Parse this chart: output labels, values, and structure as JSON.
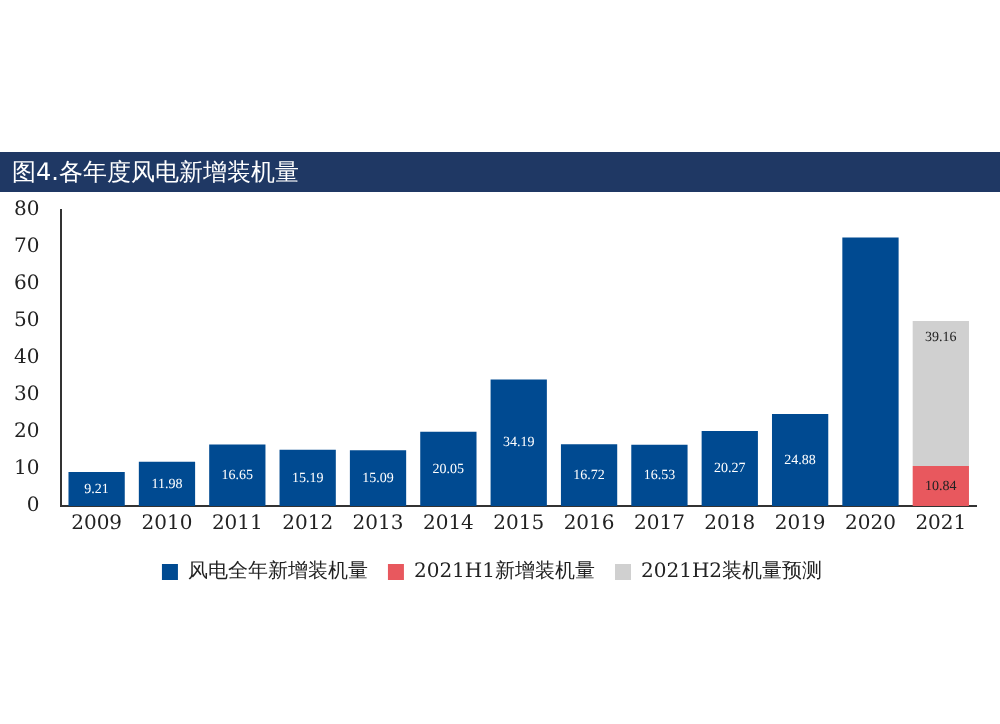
{
  "chart_data": {
    "type": "bar",
    "title": "图4.各年度风电新增装机量",
    "stacked": true,
    "categories": [
      "2009",
      "2010",
      "2011",
      "2012",
      "2013",
      "2014",
      "2015",
      "2016",
      "2017",
      "2018",
      "2019",
      "2020",
      "2021"
    ],
    "series": [
      {
        "name": "风电全年新增装机量",
        "color": "#004a91",
        "values": [
          9.21,
          11.98,
          16.65,
          15.19,
          15.09,
          20.05,
          34.19,
          16.72,
          16.53,
          20.27,
          24.88,
          72.6,
          null
        ],
        "value_labels": [
          "9.21",
          "11.98",
          "16.65",
          "15.19",
          "15.09",
          "20.05",
          "34.19",
          "16.72",
          "16.53",
          "20.27",
          "24.88",
          null,
          null
        ]
      },
      {
        "name": "2021H1新增装机量",
        "color": "#e8585e",
        "values": [
          null,
          null,
          null,
          null,
          null,
          null,
          null,
          null,
          null,
          null,
          null,
          null,
          10.84
        ],
        "value_labels": [
          null,
          null,
          null,
          null,
          null,
          null,
          null,
          null,
          null,
          null,
          null,
          null,
          "10.84"
        ]
      },
      {
        "name": "2021H2装机量预测",
        "color": "#d0d0d0",
        "values": [
          null,
          null,
          null,
          null,
          null,
          null,
          null,
          null,
          null,
          null,
          null,
          null,
          39.16
        ],
        "value_labels": [
          null,
          null,
          null,
          null,
          null,
          null,
          null,
          null,
          null,
          null,
          null,
          null,
          "39.16"
        ]
      }
    ],
    "ylim": [
      0,
      80
    ],
    "yticks": [
      0,
      10,
      20,
      30,
      40,
      50,
      60,
      70,
      80
    ],
    "grid": false,
    "legend": "bottom"
  }
}
